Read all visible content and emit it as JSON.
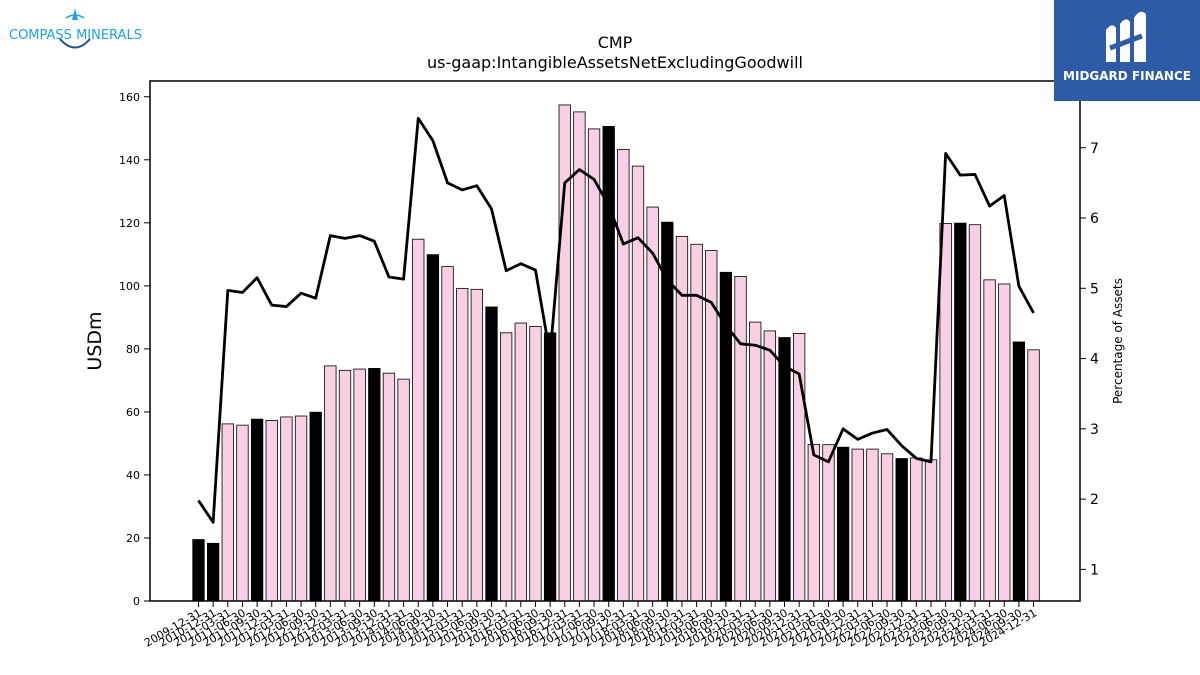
{
  "branding": {
    "left_logo_text": "COMPASS MINERALS",
    "right_logo_text": "MIDGARD FINANCE",
    "accent_color": "#1da1e2",
    "right_logo_bg": "#2d5ba8"
  },
  "chart_data": {
    "type": "bar",
    "title": "CMP",
    "subtitle": "us-gaap:IntangibleAssetsNetExcludingGoodwill",
    "ylabel": "USDm",
    "y2label": "Percentage of Assets",
    "ylim": [
      0,
      165
    ],
    "y2lim": [
      0.55,
      7.95
    ],
    "yticks": [
      0,
      20,
      40,
      60,
      80,
      100,
      120,
      140,
      160
    ],
    "y2ticks": [
      1,
      2,
      3,
      4,
      5,
      6,
      7
    ],
    "grid": false,
    "colors": {
      "annual": "#000000",
      "quarterly": "#f9cfe6",
      "line": "#000000"
    },
    "categories": [
      "2009-12-31",
      "2010-12-31",
      "2011-03-31",
      "2011-06-30",
      "2011-09-30",
      "2011-12-31",
      "2012-03-31",
      "2012-06-30",
      "2012-09-30",
      "2012-12-31",
      "2013-03-31",
      "2013-06-30",
      "2013-09-30",
      "2013-12-31",
      "2014-03-31",
      "2014-06-30",
      "2014-09-30",
      "2014-12-31",
      "2015-03-31",
      "2015-06-30",
      "2015-09-30",
      "2015-12-31",
      "2016-03-31",
      "2016-06-30",
      "2016-09-30",
      "2016-12-31",
      "2017-03-31",
      "2017-06-30",
      "2017-09-30",
      "2017-12-31",
      "2018-03-31",
      "2018-06-30",
      "2018-09-30",
      "2018-12-31",
      "2019-03-31",
      "2019-06-30",
      "2019-09-30",
      "2019-12-31",
      "2020-03-31",
      "2020-06-30",
      "2020-09-30",
      "2020-12-31",
      "2021-03-31",
      "2021-06-30",
      "2021-09-30",
      "2021-12-31",
      "2022-03-31",
      "2022-06-30",
      "2022-09-30",
      "2022-12-31",
      "2023-03-31",
      "2023-06-30",
      "2023-09-30",
      "2023-12-31",
      "2024-03-31",
      "2024-06-30",
      "2024-09-30",
      "2024-12-31"
    ],
    "annual_flags": [
      1,
      1,
      0,
      0,
      1,
      0,
      0,
      0,
      1,
      0,
      0,
      0,
      1,
      0,
      0,
      0,
      1,
      0,
      0,
      0,
      1,
      0,
      0,
      0,
      1,
      0,
      0,
      0,
      1,
      0,
      0,
      0,
      1,
      0,
      0,
      0,
      1,
      0,
      0,
      0,
      1,
      0,
      0,
      0,
      1,
      0,
      0,
      0,
      1,
      0,
      0,
      0,
      1,
      0,
      0,
      0,
      1,
      0
    ],
    "series": [
      {
        "name": "USDm",
        "values": [
          19.5,
          18.3,
          56.2,
          55.8,
          57.7,
          57.3,
          58.4,
          58.7,
          59.9,
          74.6,
          73.2,
          73.6,
          73.8,
          72.3,
          70.4,
          114.8,
          109.9,
          106.1,
          99.2,
          98.9,
          93.3,
          85.1,
          88.2,
          87.1,
          85.1,
          157.4,
          155.2,
          149.8,
          150.6,
          143.3,
          138.0,
          125.0,
          120.2,
          115.7,
          113.2,
          111.2,
          104.3,
          103.0,
          88.5,
          85.7,
          83.6,
          84.9,
          49.7,
          49.6,
          48.8,
          48.2,
          48.2,
          46.7,
          45.2,
          45.4,
          44.8,
          119.8,
          119.9,
          119.4,
          101.9,
          100.6,
          82.2,
          79.7
        ]
      },
      {
        "name": "Percentage of Assets",
        "values": [
          1.98,
          1.67,
          4.97,
          4.94,
          5.15,
          4.76,
          4.74,
          4.93,
          4.86,
          5.75,
          5.71,
          5.75,
          5.67,
          5.16,
          5.13,
          7.42,
          7.1,
          6.5,
          6.4,
          6.46,
          6.13,
          5.25,
          5.35,
          5.26,
          4.05,
          6.5,
          6.69,
          6.55,
          6.18,
          5.63,
          5.72,
          5.5,
          5.12,
          4.9,
          4.9,
          4.8,
          4.47,
          4.21,
          4.19,
          4.12,
          3.89,
          3.78,
          2.63,
          2.53,
          3.0,
          2.85,
          2.94,
          2.99,
          2.76,
          2.58,
          2.53,
          6.92,
          6.61,
          6.62,
          6.17,
          6.32,
          5.03,
          4.65
        ]
      }
    ]
  }
}
